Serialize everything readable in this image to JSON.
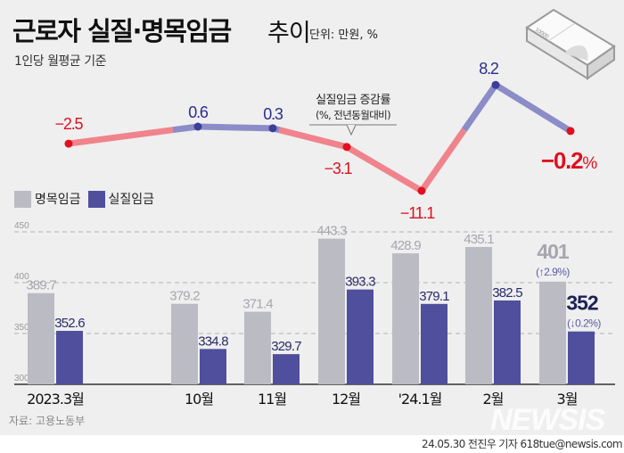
{
  "header": {
    "title": "근로자 실질·명목임금",
    "title_suffix": "추이",
    "unit": "단위: 만원, %",
    "subtitle": "1인당 월평균 기준"
  },
  "footer": {
    "source": "자료: 고용노동부",
    "credit": "24.05.30 전진우 기자 618tue@newsis.com",
    "watermark": "NEWSIS"
  },
  "colors": {
    "nominal": "#bbbbc4",
    "real": "#4f4f9d",
    "line_positive": "#8c8cc8",
    "line_negative": "#f0838c",
    "dot_positive": "#3d3d9a",
    "dot_negative": "#e0101e",
    "label_positive": "#2b2b8f",
    "label_negative": "#dd1020",
    "background": "#efefef"
  },
  "chart_data": [
    {
      "type": "line",
      "title": "실질임금 증감률",
      "annotation": "실질임금 증감률",
      "annotation_sub": "(%, 전년동월대비)",
      "categories": [
        "2023.3월",
        "10월",
        "11월",
        "12월",
        "'24.1월",
        "2월",
        "3월"
      ],
      "values": [
        -2.5,
        0.6,
        0.3,
        -3.1,
        -11.1,
        8.2,
        -0.2
      ],
      "labels": [
        "−2.5",
        "0.6",
        "0.3",
        "−3.1",
        "−11.1",
        "8.2",
        "−0.2"
      ],
      "last_label_suffix": "%",
      "ylim": [
        -12,
        9
      ]
    },
    {
      "type": "bar",
      "categories": [
        "2023.3월",
        "10월",
        "11월",
        "12월",
        "'24.1월",
        "2월",
        "3월"
      ],
      "legend": [
        "명목임금",
        "실질임금"
      ],
      "legend_position": "top-left",
      "series": [
        {
          "name": "명목임금",
          "values": [
            389.7,
            379.2,
            371.4,
            443.3,
            428.9,
            435.1,
            401
          ],
          "labels": [
            "389.7",
            "379.2",
            "371.4",
            "443.3",
            "428.9",
            "435.1",
            "401"
          ]
        },
        {
          "name": "실질임금",
          "values": [
            352.6,
            334.8,
            329.7,
            393.3,
            379.1,
            382.5,
            352
          ],
          "labels": [
            "352.6",
            "334.8",
            "329.7",
            "393.3",
            "379.1",
            "382.5",
            "352"
          ]
        }
      ],
      "last_changes": {
        "nominal": "(↑2.9%)",
        "real": "(↓0.2%)"
      },
      "yticks": [
        "300",
        "350",
        "400",
        "450"
      ],
      "ytick_values": [
        300,
        350,
        400,
        450
      ],
      "ylim": [
        300,
        460
      ],
      "grid": true
    }
  ]
}
